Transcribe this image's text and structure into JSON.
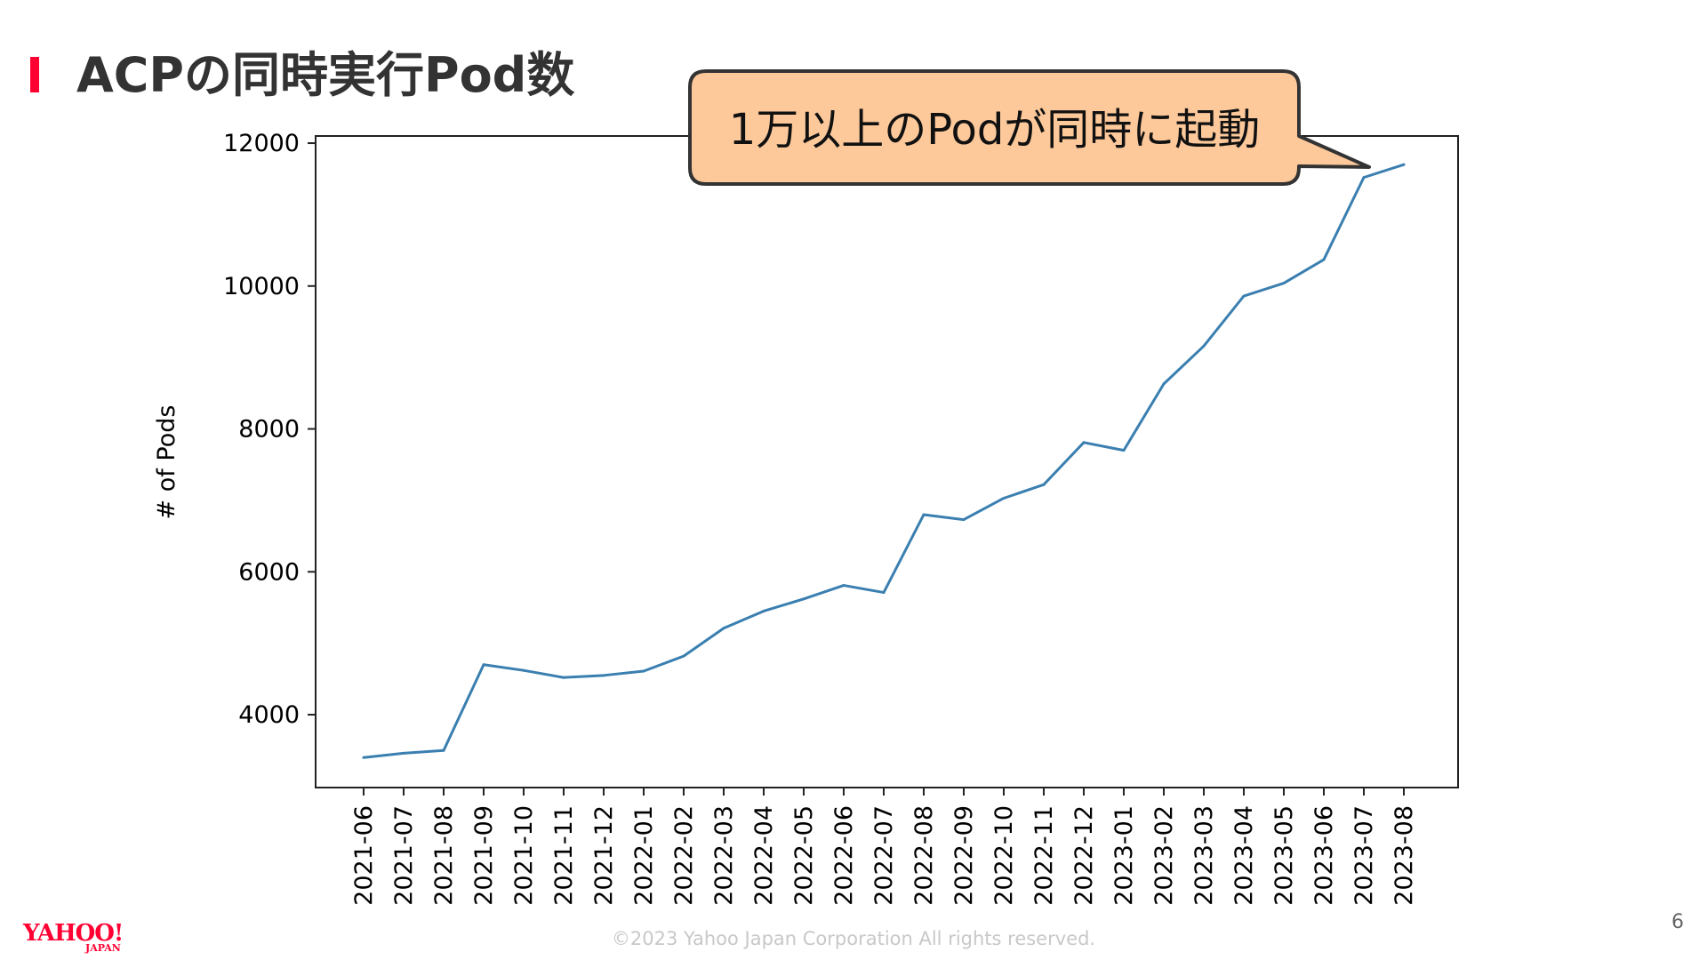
{
  "slide": {
    "title": "ACPの同時実行Pod数",
    "callout": "1万以上のPodが同時に起動",
    "footer": "©2023 Yahoo Japan Corporation All rights reserved.",
    "page_number": "6",
    "logo_main": "YAHOO!",
    "logo_sub": "JAPAN",
    "accent_color": "#ff0033",
    "callout_fill": "#fdc99b"
  },
  "chart_data": {
    "type": "line",
    "title": "",
    "xlabel": "",
    "ylabel": "# of Pods",
    "ylim": [
      2980,
      12100
    ],
    "yticks": [
      4000,
      6000,
      8000,
      10000,
      12000
    ],
    "grid": false,
    "line_color": "#3a7fb0",
    "categories": [
      "2021-06",
      "2021-07",
      "2021-08",
      "2021-09",
      "2021-10",
      "2021-11",
      "2021-12",
      "2022-01",
      "2022-02",
      "2022-03",
      "2022-04",
      "2022-05",
      "2022-06",
      "2022-07",
      "2022-08",
      "2022-09",
      "2022-10",
      "2022-11",
      "2022-12",
      "2023-01",
      "2023-02",
      "2023-03",
      "2023-04",
      "2023-05",
      "2023-06",
      "2023-07",
      "2023-08"
    ],
    "series": [
      {
        "values": [
          3400,
          3460,
          3500,
          4700,
          4620,
          4520,
          4550,
          4610,
          4820,
          5210,
          5450,
          5620,
          5810,
          5710,
          6800,
          6730,
          7030,
          7220,
          7810,
          7700,
          8630,
          9160,
          9860,
          10040,
          10370,
          11520,
          11700
        ]
      }
    ]
  }
}
